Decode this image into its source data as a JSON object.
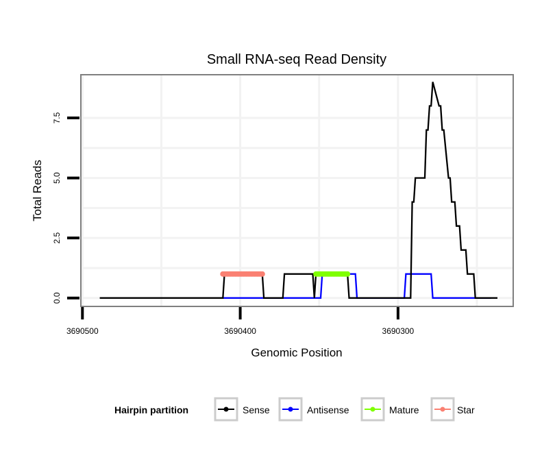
{
  "chart_data": {
    "type": "line",
    "title": "Small RNA-seq Read Density",
    "xlabel": "Genomic Position",
    "ylabel": "Total Reads",
    "x_reversed": true,
    "xlim": [
      3690501,
      3690227
    ],
    "ylim": [
      -0.35,
      9.3
    ],
    "x_ticks": [
      3690500,
      3690400,
      3690300
    ],
    "x_tick_labels": [
      "3690500",
      "3690400",
      "3690300"
    ],
    "x_minor_grid": [
      3690450,
      3690350,
      3690250
    ],
    "y_ticks": [
      0.0,
      2.5,
      5.0,
      7.5
    ],
    "y_tick_labels": [
      "0.0",
      "2.5",
      "5.0",
      "7.5"
    ],
    "y_minor_grid": [
      1.25,
      3.75,
      6.25
    ],
    "grid": true,
    "legend": {
      "title": "Hairpin partition",
      "placement": "bottom",
      "entries": [
        {
          "name": "Sense",
          "color": "#000000"
        },
        {
          "name": "Antisense",
          "color": "#0000FF"
        },
        {
          "name": "Mature",
          "color": "#7FFF00"
        },
        {
          "name": "Star",
          "color": "#FA8072"
        }
      ]
    },
    "series": [
      {
        "name": "Sense",
        "color": "#000000",
        "style": "line",
        "x": [
          3690489,
          3690411,
          3690410,
          3690386,
          3690385,
          3690373,
          3690372,
          3690354,
          3690353,
          3690352,
          3690351,
          3690332,
          3690331,
          3690292,
          3690291,
          3690290,
          3690289,
          3690283,
          3690282,
          3690281,
          3690280,
          3690279,
          3690278,
          3690274,
          3690273,
          3690272,
          3690271,
          3690268,
          3690267,
          3690266,
          3690264,
          3690263,
          3690261,
          3690260,
          3690257,
          3690256,
          3690252,
          3690251,
          3690248,
          3690247,
          3690245,
          3690244,
          3690241,
          3690240,
          3690237
        ],
        "y": [
          0,
          0,
          1,
          1,
          0,
          0,
          1,
          1,
          0,
          1,
          1,
          1,
          0,
          0,
          4,
          4,
          5,
          5,
          7,
          7,
          8,
          8,
          9,
          8,
          8,
          7,
          7,
          5,
          5,
          4,
          4,
          3,
          3,
          2,
          2,
          1,
          1,
          0,
          0,
          0,
          0,
          0,
          0,
          0,
          0
        ]
      },
      {
        "name": "Antisense",
        "color": "#0000FF",
        "style": "line",
        "x": [
          3690411,
          3690386,
          3690372,
          3690349,
          3690348,
          3690327,
          3690326,
          3690296,
          3690295,
          3690279,
          3690278,
          3690241
        ],
        "y": [
          0,
          0,
          0,
          0,
          1,
          1,
          0,
          0,
          1,
          1,
          0,
          0
        ]
      },
      {
        "name": "Mature",
        "color": "#7FFF00",
        "style": "points",
        "x": [
          3690352,
          3690351,
          3690350,
          3690349,
          3690348,
          3690347,
          3690346,
          3690345,
          3690344,
          3690343,
          3690342,
          3690341,
          3690340,
          3690339,
          3690338,
          3690337,
          3690336,
          3690335,
          3690334,
          3690333,
          3690332
        ],
        "y": [
          1,
          1,
          1,
          1,
          1,
          1,
          1,
          1,
          1,
          1,
          1,
          1,
          1,
          1,
          1,
          1,
          1,
          1,
          1,
          1,
          1
        ]
      },
      {
        "name": "Star",
        "color": "#FA8072",
        "style": "points",
        "x": [
          3690411,
          3690410,
          3690409,
          3690408,
          3690407,
          3690406,
          3690405,
          3690404,
          3690403,
          3690402,
          3690401,
          3690400,
          3690399,
          3690398,
          3690397,
          3690396,
          3690395,
          3690394,
          3690393,
          3690392,
          3690391,
          3690390,
          3690389,
          3690388,
          3690387,
          3690386
        ],
        "y": [
          1,
          1,
          1,
          1,
          1,
          1,
          1,
          1,
          1,
          1,
          1,
          1,
          1,
          1,
          1,
          1,
          1,
          1,
          1,
          1,
          1,
          1,
          1,
          1,
          1,
          1
        ]
      }
    ]
  }
}
